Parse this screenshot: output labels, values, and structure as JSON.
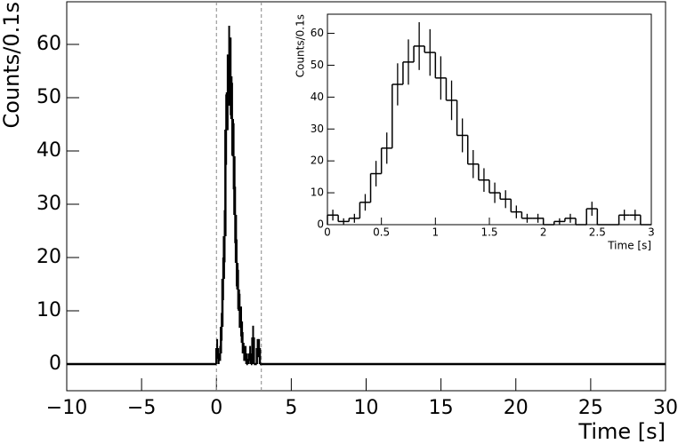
{
  "chart_data": [
    {
      "type": "histogram",
      "xlabel": "Time [s]",
      "ylabel": "Counts/0.1s",
      "bins": [
        0,
        0.1,
        0.2,
        0.3,
        0.4,
        0.5,
        0.6,
        0.7,
        0.8,
        0.9,
        1,
        1.1,
        1.2,
        1.3,
        1.4,
        1.5,
        1.6,
        1.7,
        1.8,
        1.9,
        2,
        2.1,
        2.2,
        2.3,
        2.4,
        2.5,
        2.6,
        2.7,
        2.8,
        2.9,
        3
      ],
      "values": [
        3,
        1,
        2,
        7,
        16,
        24,
        44,
        51,
        56,
        54,
        46,
        39,
        28,
        19,
        14,
        10,
        8,
        4,
        2,
        2,
        0,
        1,
        2,
        0,
        5,
        0,
        0,
        3,
        3,
        0
      ],
      "errors": [
        1.7,
        1,
        1.4,
        2.6,
        4,
        4.9,
        6.6,
        7.1,
        7.5,
        7.3,
        6.8,
        6.2,
        5.3,
        4.4,
        3.7,
        3.2,
        2.8,
        2,
        1.4,
        1.4,
        0,
        1,
        1.4,
        0,
        2.2,
        0,
        0,
        1.7,
        1.7,
        0
      ],
      "color": "#000000",
      "markers": [
        0,
        3
      ],
      "xlim": [
        -10,
        30
      ],
      "ylim": [
        -5,
        68
      ],
      "xticks": [
        {
          "value": -10,
          "label": "−10"
        },
        {
          "value": -5,
          "label": "−5"
        },
        0,
        5,
        10,
        15,
        20,
        25,
        30
      ],
      "yticks": [
        0,
        10,
        20,
        30,
        40,
        50,
        60
      ]
    },
    {
      "type": "histogram",
      "xlabel": "Time [s]",
      "ylabel": "Counts/0.1s",
      "bins": [
        0,
        0.1,
        0.2,
        0.3,
        0.4,
        0.5,
        0.6,
        0.7,
        0.8,
        0.9,
        1,
        1.1,
        1.2,
        1.3,
        1.4,
        1.5,
        1.6,
        1.7,
        1.8,
        1.9,
        2,
        2.1,
        2.2,
        2.3,
        2.4,
        2.5,
        2.6,
        2.7,
        2.8,
        2.9,
        3
      ],
      "values": [
        3,
        1,
        2,
        7,
        16,
        24,
        44,
        51,
        56,
        54,
        46,
        39,
        28,
        19,
        14,
        10,
        8,
        4,
        2,
        2,
        0,
        1,
        2,
        0,
        5,
        0,
        0,
        3,
        3,
        0
      ],
      "errors": [
        1.7,
        1,
        1.4,
        2.6,
        4,
        4.9,
        6.6,
        7.1,
        7.5,
        7.3,
        6.8,
        6.2,
        5.3,
        4.4,
        3.7,
        3.2,
        2.8,
        2,
        1.4,
        1.4,
        0,
        1,
        1.4,
        0,
        2.2,
        0,
        0,
        1.7,
        1.7,
        0
      ],
      "color": "#000000",
      "xlim": [
        0,
        3
      ],
      "ylim": [
        0,
        66
      ],
      "xticks": [
        0,
        0.5,
        1,
        1.5,
        2,
        2.5,
        3
      ],
      "yticks": [
        0,
        10,
        20,
        30,
        40,
        50,
        60
      ]
    }
  ]
}
